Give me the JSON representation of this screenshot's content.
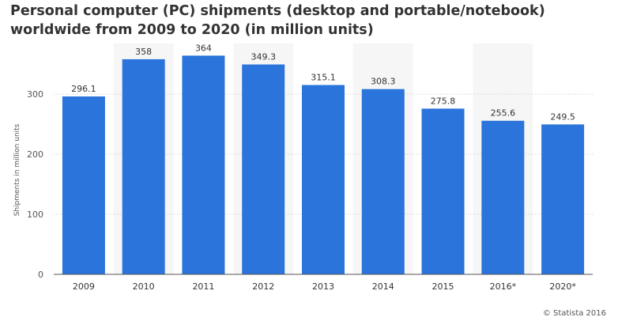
{
  "chart_data": {
    "type": "bar",
    "title": "Personal computer (PC) shipments (desktop and portable/notebook) worldwide from 2009 to 2020 (in million units)",
    "xlabel": "",
    "ylabel": "Shipments in million units",
    "categories": [
      "2009",
      "2010",
      "2011",
      "2012",
      "2013",
      "2014",
      "2015",
      "2016*",
      "2020*"
    ],
    "values": [
      296.1,
      358,
      364,
      349.3,
      315.1,
      308.3,
      275.8,
      255.6,
      249.5
    ],
    "value_labels": [
      "296.1",
      "358",
      "364",
      "349.3",
      "315.1",
      "308.3",
      "275.8",
      "255.6",
      "249.5"
    ],
    "yticks": [
      "0",
      "100",
      "200",
      "300"
    ],
    "ylim": [
      0,
      380
    ],
    "grid": "horizontal dotted",
    "legend": "none",
    "colors": {
      "bar": "#2a74db",
      "band": "#f6f6f6",
      "grid": "#c9c9c9",
      "axis": "#555555"
    }
  },
  "credit": "© Statista 2016"
}
